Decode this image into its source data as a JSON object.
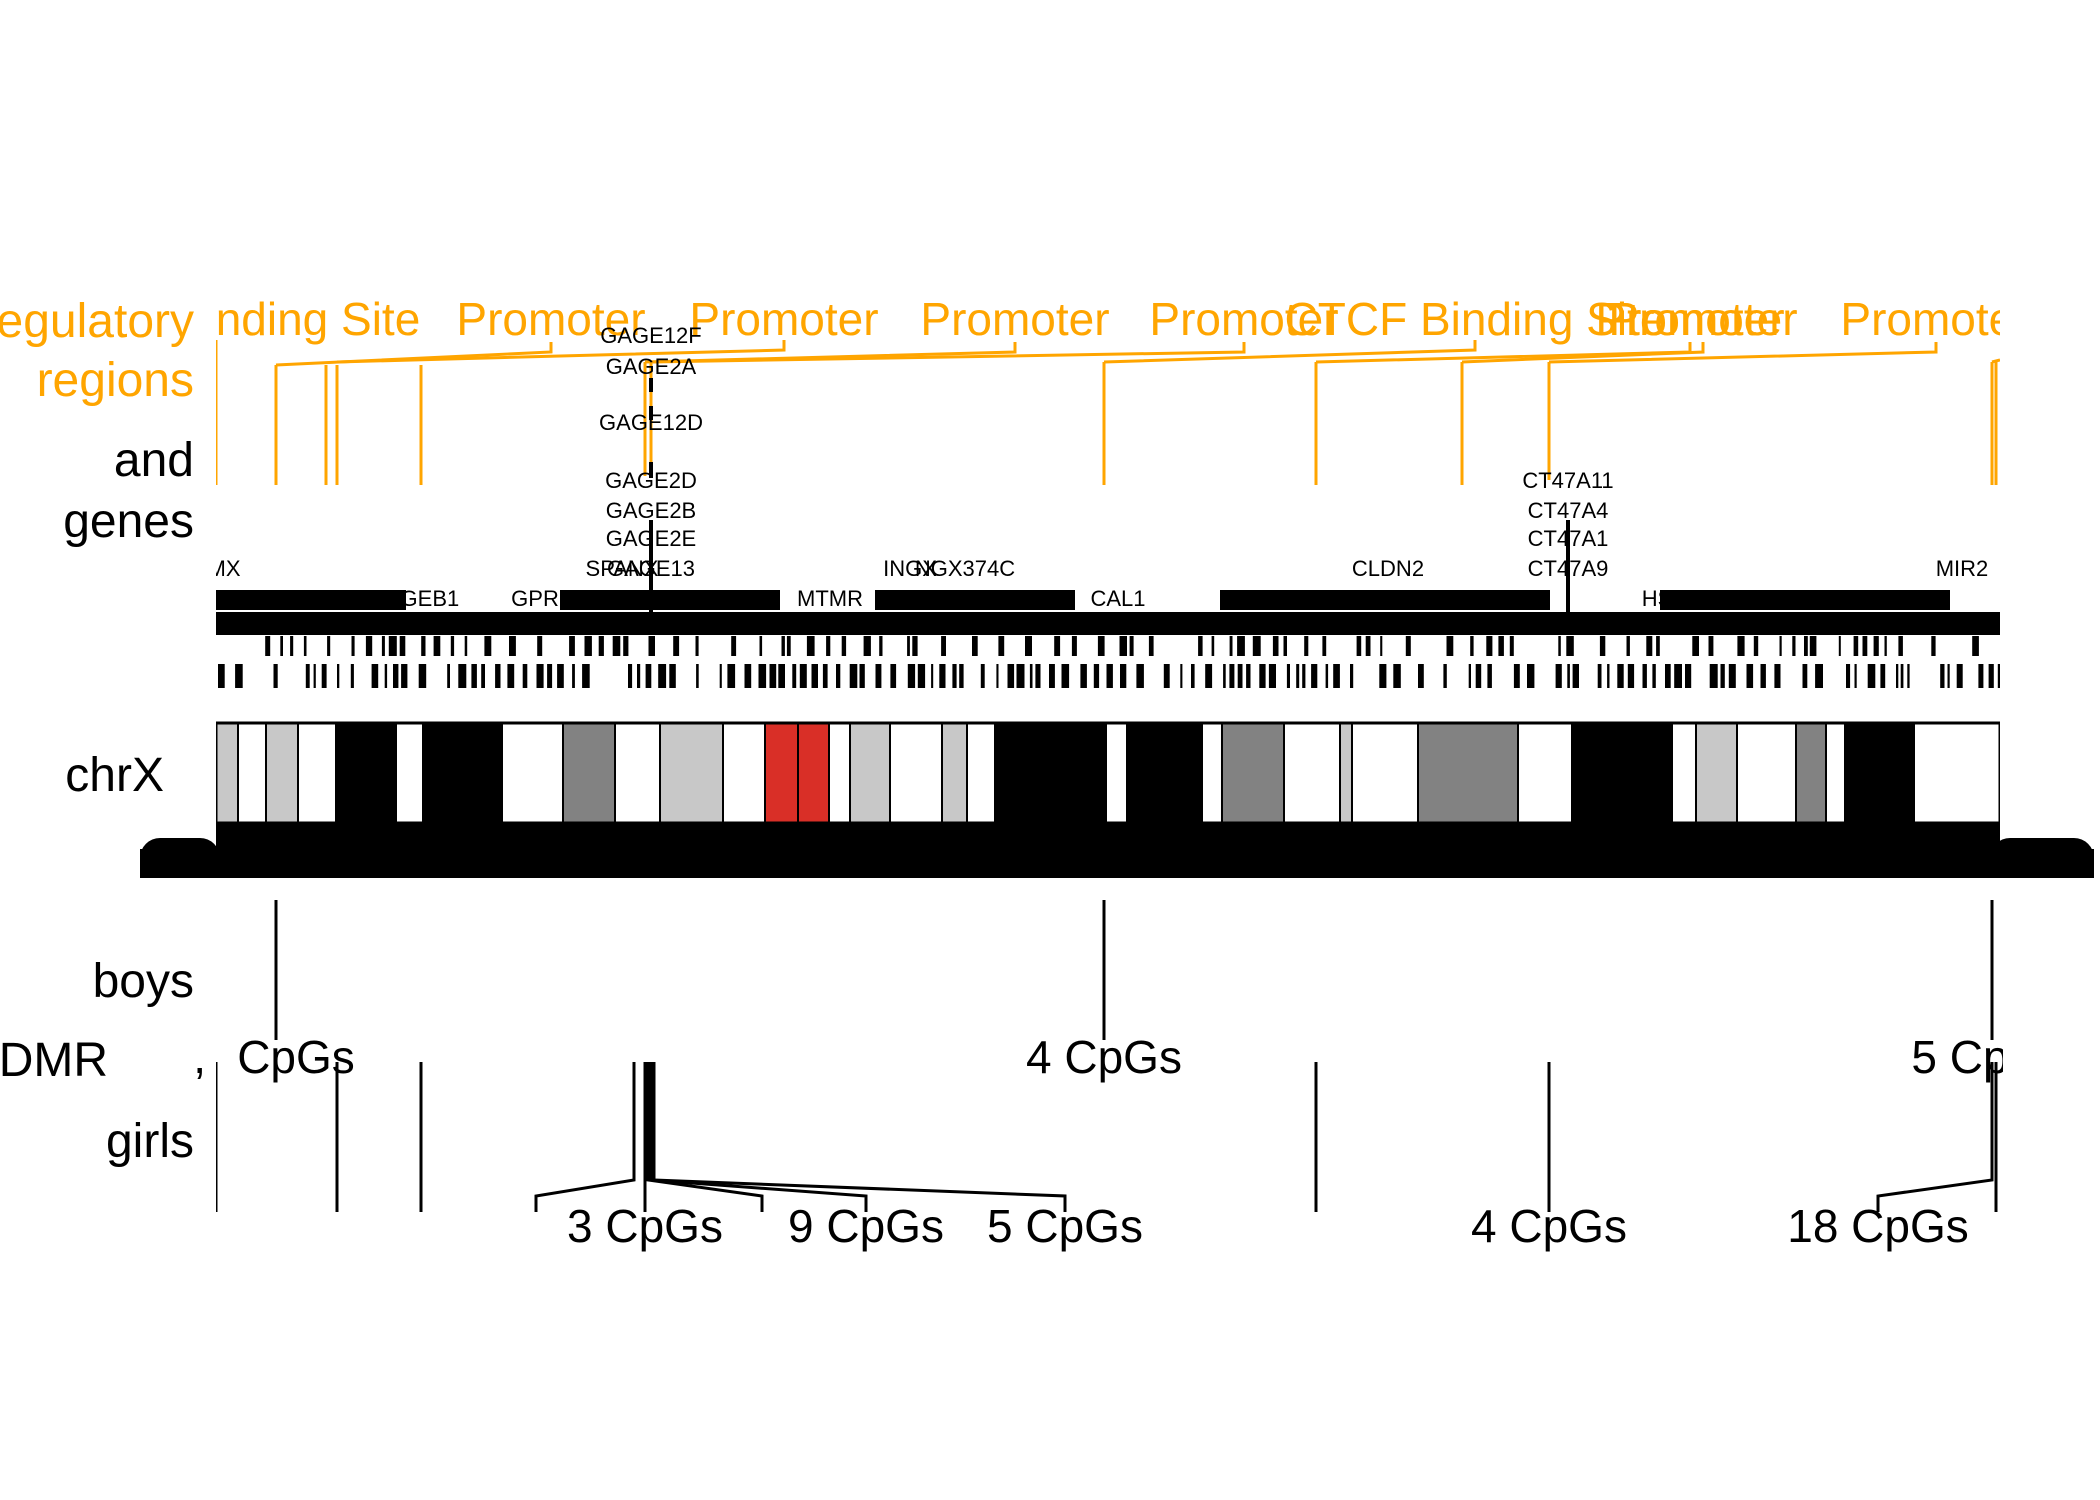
{
  "colors": {
    "regulatory": "#FFA500",
    "ink": "#000000",
    "band_gpos100": "#000000",
    "band_gpos75": "#828282",
    "band_gpos25": "#C8C8C8",
    "band_gneg": "#FFFFFF",
    "band_acen": "#D92F27"
  },
  "tracks": {
    "regulatory_label": [
      "egulatory",
      "regions"
    ],
    "genes_label": [
      "and",
      "genes"
    ],
    "chromosome_label": "chrX",
    "boys_label": "boys",
    "dmr_label": "DMR",
    "girls_label": "girls"
  },
  "regulatory_regions": [
    {
      "label": "nding Site"
    },
    {
      "label": "Promoter"
    },
    {
      "label": "Promoter"
    },
    {
      "label": "Promoter"
    },
    {
      "label": "Promoter"
    },
    {
      "label": "CTCF Binding Site"
    },
    {
      "label": "Promoter"
    },
    {
      "label": "Promoter"
    },
    {
      "label": "Promoter"
    }
  ],
  "gene_labels": [
    "GAGE12F",
    "GAGE2A",
    "GAGE12D",
    "GAGE2D",
    "GAGE2B",
    "GAGE2E",
    "GAGE13",
    "MX",
    "GAGEB1",
    "GPR",
    "SPANX",
    "MTMR",
    "INGX",
    "NGX374C",
    "CAL1",
    "CLDN2",
    "CT47A11",
    "CT47A4",
    "CT47A1",
    "CT47A9",
    "MIR2",
    "HSD"
  ],
  "boys_dmrs": [
    {
      "label": "CpGs"
    },
    {
      "label": "4 CpGs"
    },
    {
      "label": "5 Cp"
    }
  ],
  "girls_dmrs": [
    {
      "label": "3 CpGs"
    },
    {
      "label": "9 CpGs"
    },
    {
      "label": "5 CpGs"
    },
    {
      "label": "4 CpGs"
    },
    {
      "label": "18 CpGs"
    }
  ]
}
